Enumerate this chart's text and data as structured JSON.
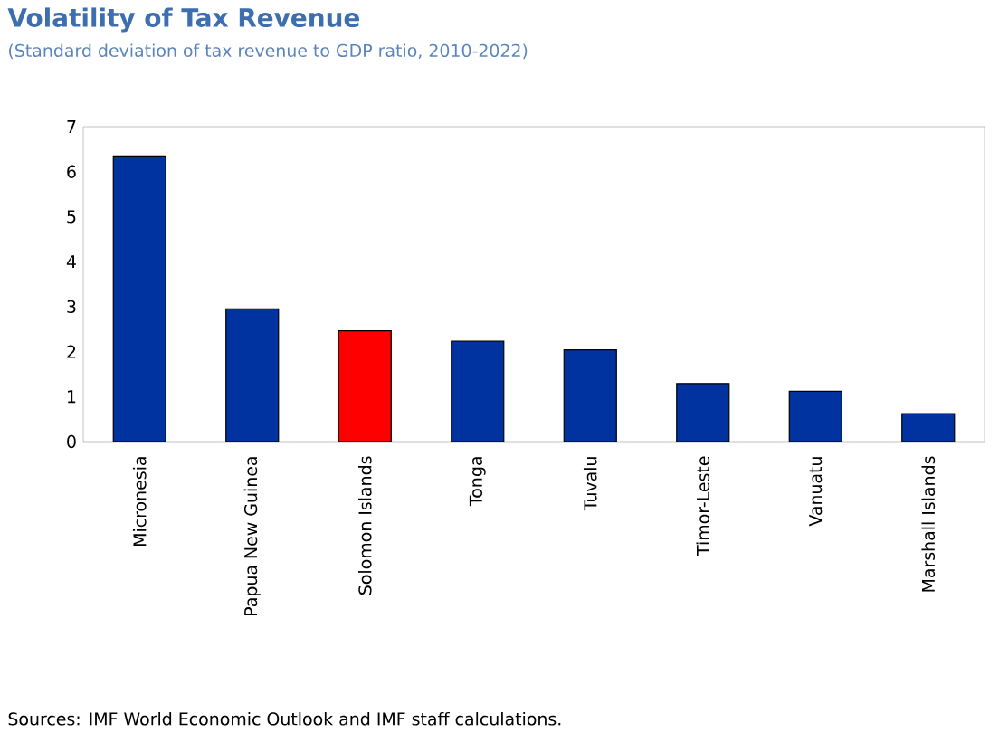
{
  "chart_data": {
    "type": "bar",
    "title": "Volatility of Tax Revenue",
    "subtitle": "(Standard deviation of tax revenue to GDP ratio, 2010-2022)",
    "categories": [
      "Micronesia",
      "Papua New Guinea",
      "Solomon Islands",
      "Tonga",
      "Tuvalu",
      "Timor-Leste",
      "Vanuatu",
      "Marshall Islands"
    ],
    "values": [
      6.35,
      2.95,
      2.46,
      2.23,
      2.04,
      1.29,
      1.12,
      0.62
    ],
    "colors": [
      "#0033a0",
      "#0033a0",
      "#ff0000",
      "#0033a0",
      "#0033a0",
      "#0033a0",
      "#0033a0",
      "#0033a0"
    ],
    "ylim": [
      0,
      7
    ],
    "yticks": [
      0,
      1,
      2,
      3,
      4,
      5,
      6,
      7
    ],
    "grid": false,
    "annotations": [
      "Sources: IMF World Economic Outlook and IMF staff calculations."
    ]
  }
}
